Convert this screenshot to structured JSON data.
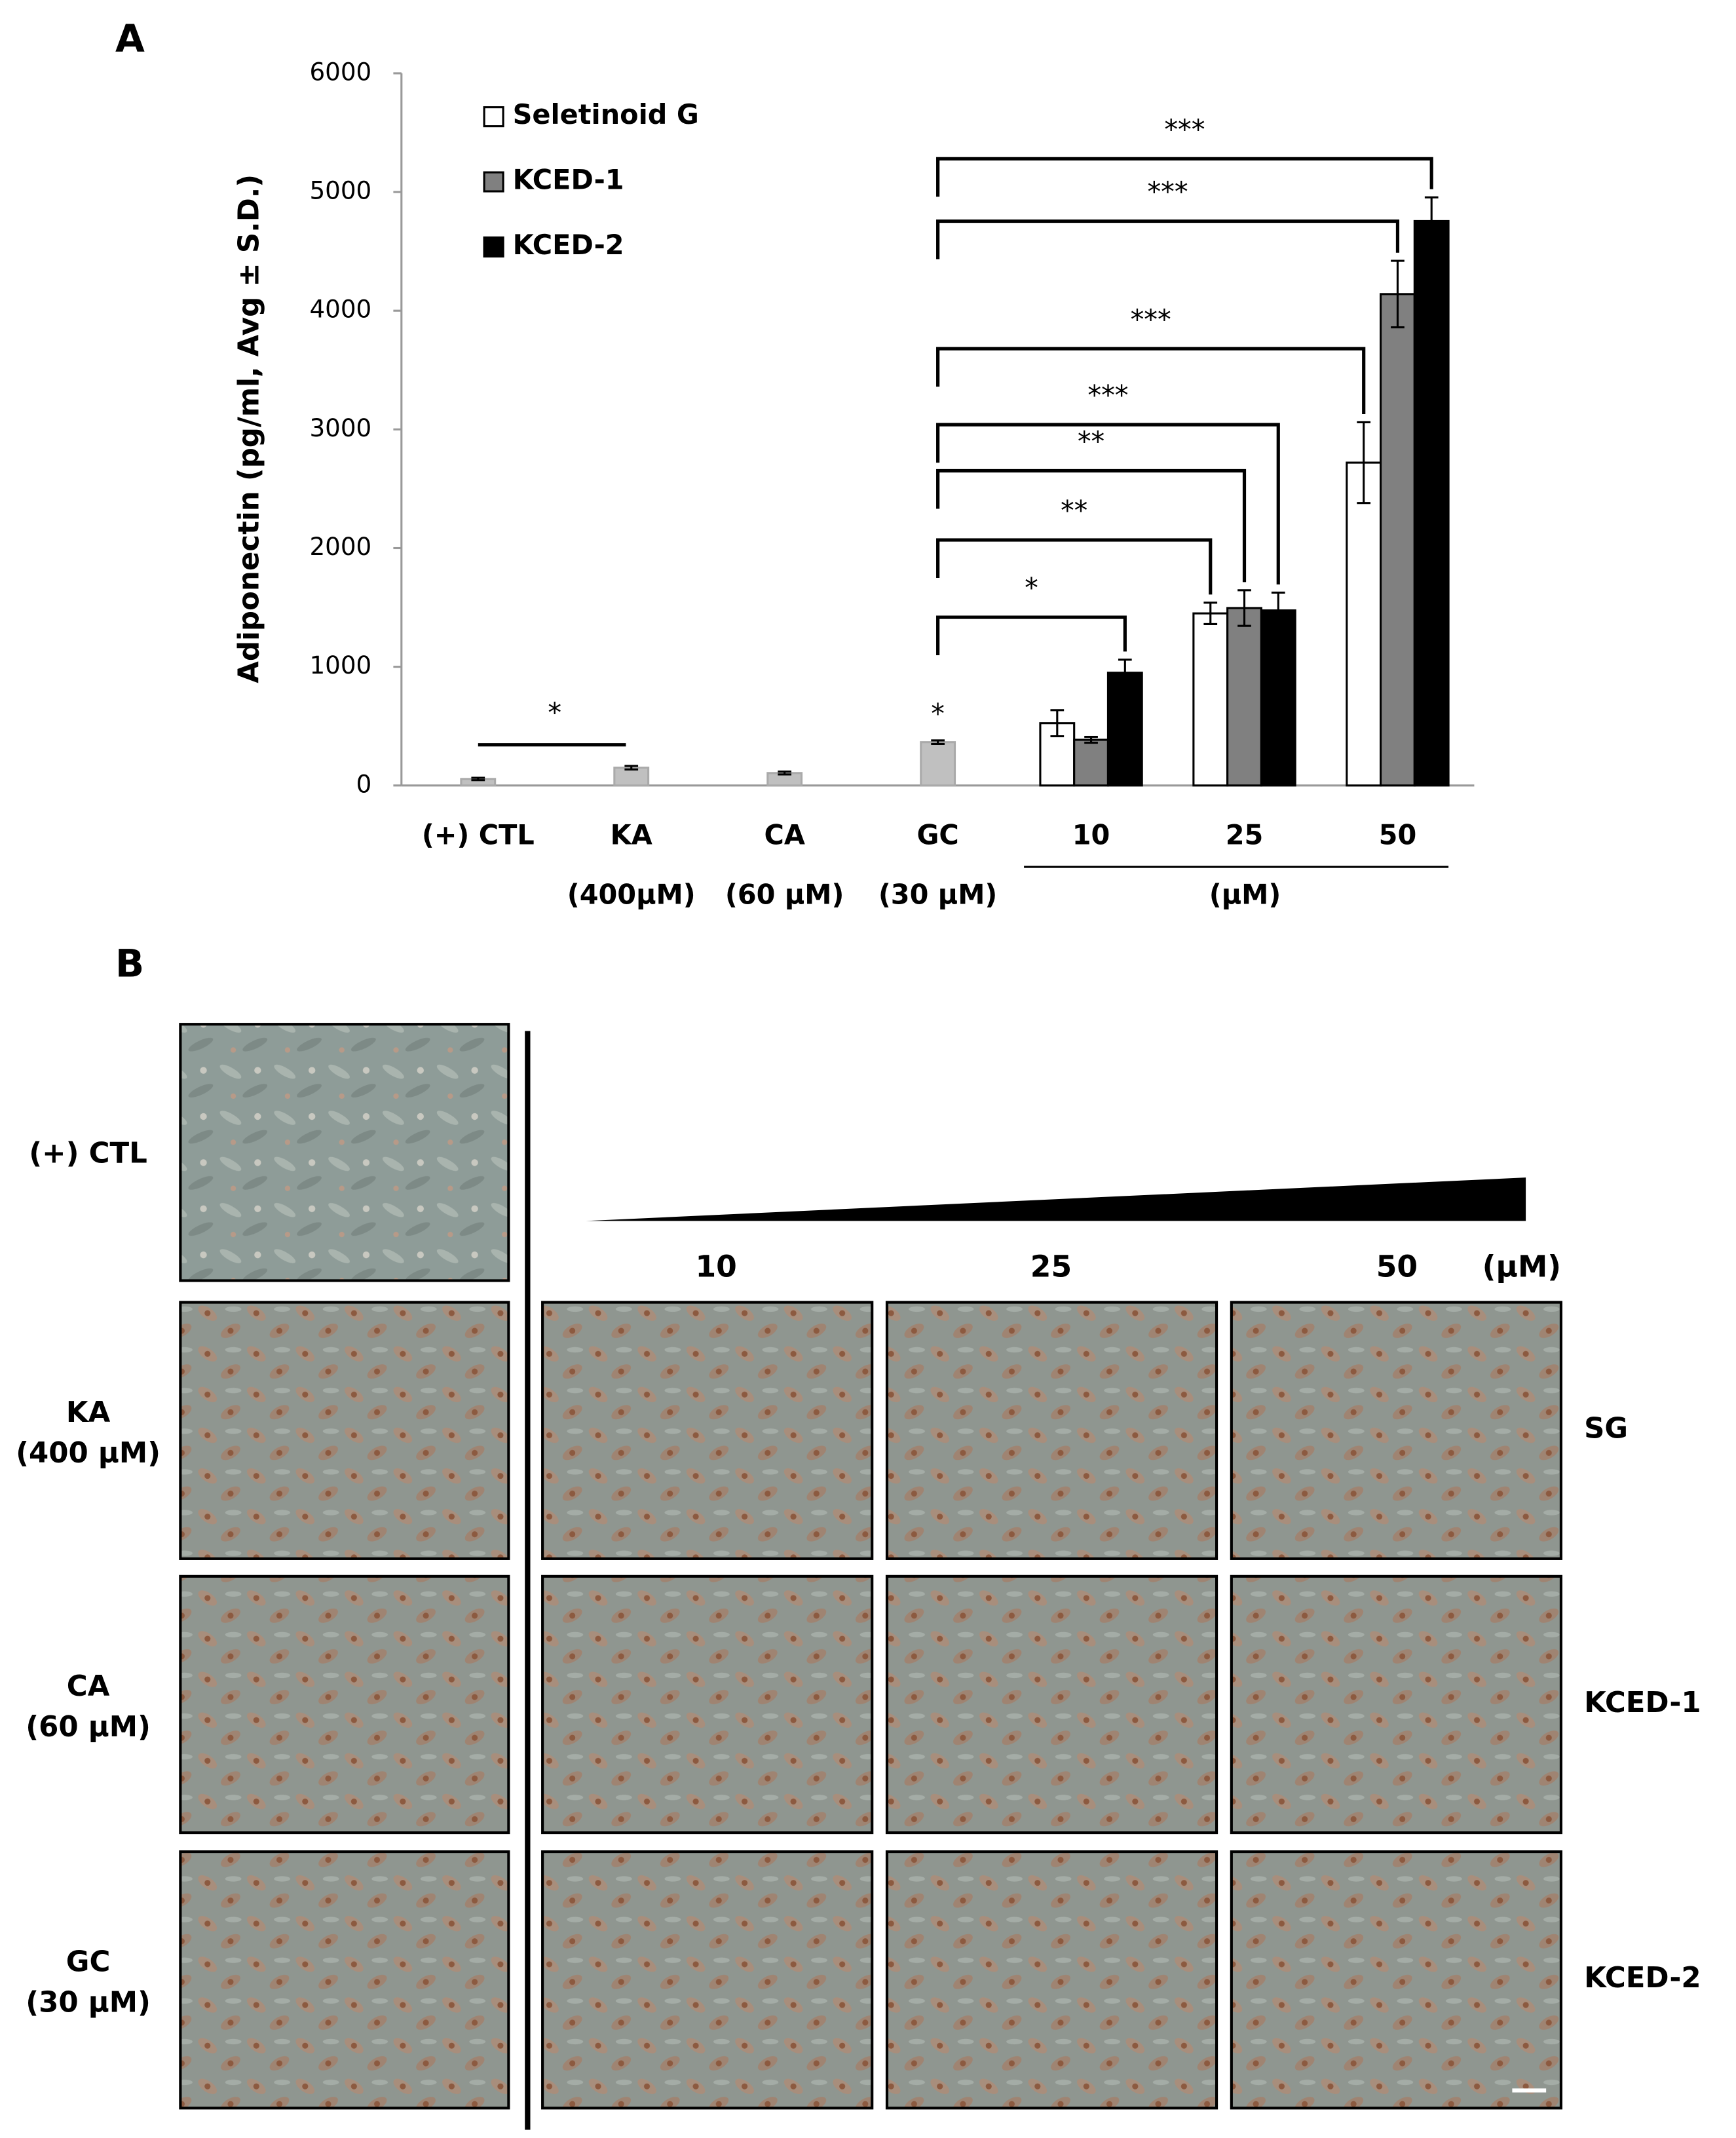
{
  "chart_data": {
    "type": "grouped-bar",
    "panel": "A",
    "y_label": "Adiponectin (pg/ml,  Avg ± S.D.)",
    "categories": [
      "(+) CTL",
      "KA",
      "CA",
      "GC",
      "10",
      "25",
      "50"
    ],
    "category_notes": [
      null,
      "(400μM)",
      "(60 μM)",
      "(30 μM)",
      null,
      null,
      null
    ],
    "group_label": "(μM)",
    "values": [
      55,
      150,
      105,
      365,
      null,
      null,
      null
    ],
    "errors": [
      10,
      15,
      12,
      15,
      null,
      null,
      null
    ],
    "color": "#c0c0c0",
    "series": [
      {
        "name": "Seletinoid G",
        "color": "#ffffff",
        "values": [
          null,
          null,
          null,
          null,
          525,
          1450,
          2720
        ],
        "errors": [
          null,
          null,
          null,
          null,
          110,
          90,
          340
        ]
      },
      {
        "name": "KCED-1",
        "color": "#808080",
        "values": [
          null,
          null,
          null,
          null,
          385,
          1495,
          4140
        ],
        "errors": [
          null,
          null,
          null,
          null,
          25,
          150,
          280
        ]
      },
      {
        "name": "KCED-2",
        "color": "#000000",
        "values": [
          null,
          null,
          null,
          null,
          950,
          1475,
          4755
        ],
        "errors": [
          null,
          null,
          null,
          null,
          110,
          150,
          200
        ]
      }
    ],
    "ylim": [
      0,
      6000
    ],
    "yticks": [
      0,
      1000,
      2000,
      3000,
      4000,
      5000,
      6000
    ],
    "annotations": [
      {
        "text": "*",
        "from": "(+) CTL",
        "to": "KA"
      },
      {
        "text": "*",
        "at": "GC"
      },
      {
        "text": "*",
        "from": "GC",
        "to": "10",
        "series": "KCED-2"
      },
      {
        "text": "**",
        "from": "GC",
        "to": "25",
        "series": "Seletinoid G"
      },
      {
        "text": "**",
        "from": "GC",
        "to": "25",
        "series": "KCED-1"
      },
      {
        "text": "***",
        "from": "GC",
        "to": "25",
        "series": "KCED-2"
      },
      {
        "text": "***",
        "from": "GC",
        "to": "50",
        "series": "Seletinoid G"
      },
      {
        "text": "***",
        "from": "GC",
        "to": "50",
        "series": "KCED-1"
      },
      {
        "text": "***",
        "from": "GC",
        "to": "50",
        "series": "KCED-2"
      }
    ]
  },
  "panel_b": {
    "panel": "B",
    "rows": [
      [
        "(+) CTL"
      ],
      [
        "KA",
        "(400 μM)"
      ],
      [
        "CA",
        "(60 μM)"
      ],
      [
        "GC",
        "(30 μM)"
      ]
    ],
    "doses": [
      "10",
      "25",
      "50"
    ],
    "unit": "(μM)",
    "row_series": [
      "SG",
      "KCED-1",
      "KCED-2"
    ]
  }
}
